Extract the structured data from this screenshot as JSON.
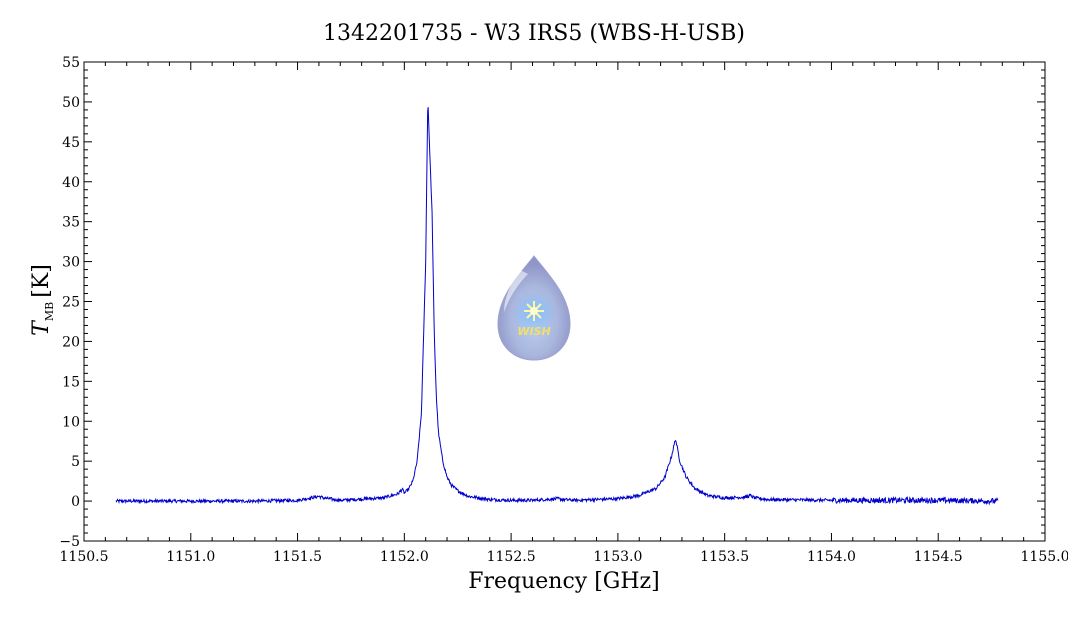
{
  "chart_data": {
    "type": "line",
    "title": "1342201735 - W3 IRS5 (WBS-H-USB)",
    "xlabel": "Frequency [GHz]",
    "ylabel": "T",
    "ylabel_sub": "MB",
    "ylabel_unit": "[K]",
    "xlim": [
      1150.5,
      1155.0
    ],
    "ylim": [
      -5,
      55
    ],
    "xticks": [
      1150.5,
      1151.0,
      1151.5,
      1152.0,
      1152.5,
      1153.0,
      1153.5,
      1154.0,
      1154.5,
      1155.0
    ],
    "xtick_labels": [
      "1150.5",
      "1151.0",
      "1151.5",
      "1152.0",
      "1152.5",
      "1153.0",
      "1153.5",
      "1154.0",
      "1154.5",
      "1155.0"
    ],
    "yticks": [
      -5,
      0,
      5,
      10,
      15,
      20,
      25,
      30,
      35,
      40,
      45,
      50,
      55
    ],
    "ytick_labels": [
      "−5",
      "0",
      "5",
      "10",
      "15",
      "20",
      "25",
      "30",
      "35",
      "40",
      "45",
      "50",
      "55"
    ],
    "grid": false,
    "line_color": "#0000cc",
    "series": [
      {
        "x": [
          1150.65,
          1151.0,
          1151.3,
          1151.5,
          1151.58,
          1151.6,
          1151.62,
          1151.7,
          1151.9,
          1151.97,
          1151.99,
          1152.0,
          1152.02,
          1152.04,
          1152.06,
          1152.08,
          1152.1,
          1152.11,
          1152.12,
          1152.13,
          1152.14,
          1152.15,
          1152.16,
          1152.18,
          1152.2,
          1152.22,
          1152.25,
          1152.3,
          1152.4,
          1152.5,
          1152.6,
          1152.72,
          1152.74,
          1152.8,
          1153.0,
          1153.1,
          1153.18,
          1153.22,
          1153.25,
          1153.27,
          1153.29,
          1153.32,
          1153.36,
          1153.42,
          1153.5,
          1153.6,
          1153.62,
          1153.64,
          1153.7,
          1154.0,
          1154.5,
          1154.78
        ],
        "y": [
          0,
          0,
          0,
          0.1,
          0.5,
          0.6,
          0.4,
          0.1,
          0.4,
          0.9,
          1.5,
          1.0,
          1.5,
          2.5,
          5,
          11,
          30,
          50.5,
          43,
          36,
          21,
          13,
          8.5,
          5,
          3,
          2,
          1.3,
          0.6,
          0.2,
          0.1,
          0.1,
          0.3,
          0.2,
          0.1,
          0.3,
          0.7,
          1.6,
          3,
          5.5,
          7.8,
          5,
          3,
          1.6,
          0.7,
          0.4,
          0.5,
          0.7,
          0.4,
          0.2,
          0.1,
          0.1,
          0
        ]
      }
    ]
  },
  "logo": {
    "text": "WISH"
  }
}
